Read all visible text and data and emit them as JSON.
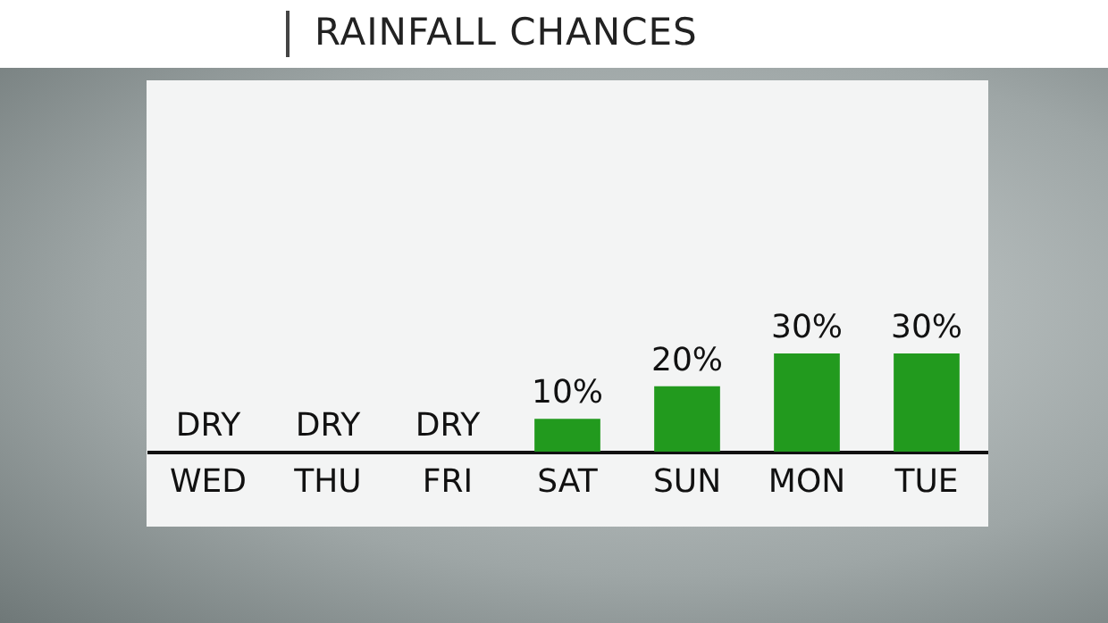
{
  "chart_data": {
    "type": "bar",
    "title": "RAINFALL CHANCES",
    "categories": [
      "WED",
      "THU",
      "FRI",
      "SAT",
      "SUN",
      "MON",
      "TUE"
    ],
    "values": [
      0,
      0,
      0,
      10,
      20,
      30,
      30
    ],
    "value_labels": [
      "DRY",
      "DRY",
      "DRY",
      "10%",
      "20%",
      "30%",
      "30%"
    ],
    "color": "#229a1e"
  }
}
